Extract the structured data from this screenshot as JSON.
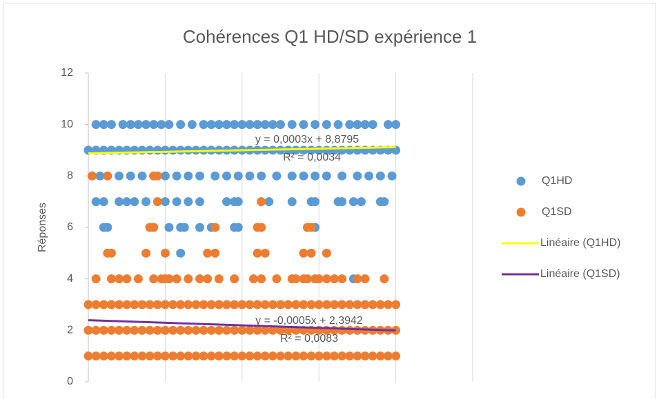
{
  "chart_data": {
    "type": "scatter",
    "title": "Cohérences Q1 HD/SD expérience 1",
    "y_label": "Réponses",
    "xlim": [
      0,
      1000
    ],
    "xticks": [
      0,
      200,
      400,
      600,
      800,
      1000
    ],
    "ylim": [
      0,
      12
    ],
    "yticks": [
      0,
      2,
      4,
      6,
      8,
      10,
      12
    ],
    "grid": "x",
    "annotations": [
      "y = 0,0003x + 8,8795",
      "R² = 0,0034",
      "y = -0,0005x + 2,3942",
      "R² = 0,0083"
    ],
    "series": [
      {
        "name": "Q1HD",
        "type": "scatter",
        "color": "#5b9bd5",
        "x": [
          20,
          40,
          60,
          90,
          110,
          130,
          150,
          170,
          190,
          210,
          240,
          270,
          300,
          320,
          340,
          360,
          380,
          400,
          420,
          440,
          460,
          480,
          500,
          530,
          560,
          590,
          620,
          650,
          680,
          700,
          720,
          740,
          780,
          800,
          0,
          20,
          40,
          60,
          80,
          100,
          120,
          140,
          160,
          180,
          200,
          220,
          240,
          260,
          280,
          300,
          320,
          340,
          360,
          380,
          400,
          420,
          440,
          460,
          480,
          500,
          520,
          540,
          560,
          580,
          600,
          620,
          640,
          660,
          680,
          700,
          720,
          740,
          760,
          780,
          800,
          10,
          30,
          50,
          80,
          110,
          140,
          170,
          200,
          230,
          260,
          290,
          330,
          360,
          390,
          420,
          450,
          490,
          530,
          560,
          590,
          620,
          660,
          700,
          730,
          760,
          790,
          20,
          40,
          80,
          100,
          120,
          150,
          200,
          230,
          260,
          290,
          360,
          380,
          390,
          470,
          530,
          580,
          590,
          650,
          660,
          690,
          710,
          760,
          770,
          40,
          50,
          160,
          170,
          210,
          240,
          250,
          290,
          320,
          380,
          390,
          570,
          590,
          240,
          690
        ],
        "values": [
          10,
          10,
          10,
          10,
          10,
          10,
          10,
          10,
          10,
          10,
          10,
          10,
          10,
          10,
          10,
          10,
          10,
          10,
          10,
          10,
          10,
          10,
          10,
          10,
          10,
          10,
          10,
          10,
          10,
          10,
          10,
          10,
          10,
          10,
          9,
          9,
          9,
          9,
          9,
          9,
          9,
          9,
          9,
          9,
          9,
          9,
          9,
          9,
          9,
          9,
          9,
          9,
          9,
          9,
          9,
          9,
          9,
          9,
          9,
          9,
          9,
          9,
          9,
          9,
          9,
          9,
          9,
          9,
          9,
          9,
          9,
          9,
          9,
          9,
          9,
          8,
          8,
          8,
          8,
          8,
          8,
          8,
          8,
          8,
          8,
          8,
          8,
          8,
          8,
          8,
          8,
          8,
          8,
          8,
          8,
          8,
          8,
          8,
          8,
          8,
          8,
          7,
          7,
          7,
          7,
          7,
          7,
          7,
          7,
          7,
          7,
          7,
          7,
          7,
          7,
          7,
          7,
          7,
          7,
          7,
          7,
          7,
          7,
          7,
          6,
          6,
          6,
          6,
          6,
          6,
          6,
          6,
          6,
          6,
          6,
          6,
          6,
          5,
          4
        ]
      },
      {
        "name": "Q1SD",
        "type": "scatter",
        "color": "#ed7d31",
        "x": [
          10,
          50,
          170,
          180,
          180,
          450,
          160,
          170,
          330,
          440,
          450,
          570,
          580,
          50,
          60,
          150,
          200,
          310,
          330,
          440,
          460,
          560,
          580,
          620,
          20,
          60,
          80,
          100,
          130,
          170,
          190,
          200,
          210,
          230,
          260,
          290,
          310,
          340,
          380,
          430,
          450,
          490,
          530,
          540,
          560,
          570,
          590,
          600,
          620,
          640,
          660,
          700,
          720,
          770,
          0,
          20,
          40,
          60,
          80,
          100,
          120,
          140,
          160,
          180,
          200,
          220,
          240,
          260,
          280,
          300,
          320,
          340,
          360,
          380,
          400,
          420,
          440,
          460,
          480,
          500,
          520,
          540,
          560,
          580,
          600,
          620,
          640,
          660,
          680,
          700,
          720,
          740,
          760,
          780,
          800,
          0,
          20,
          40,
          60,
          80,
          100,
          120,
          140,
          160,
          180,
          200,
          220,
          240,
          260,
          280,
          300,
          320,
          340,
          360,
          380,
          400,
          420,
          440,
          460,
          480,
          500,
          520,
          540,
          560,
          580,
          600,
          620,
          640,
          660,
          680,
          700,
          720,
          740,
          760,
          780,
          800,
          0,
          20,
          40,
          60,
          80,
          100,
          120,
          140,
          160,
          180,
          200,
          220,
          240,
          260,
          280,
          300,
          320,
          340,
          360,
          380,
          400,
          420,
          440,
          460,
          480,
          500,
          520,
          540,
          560,
          580,
          600,
          620,
          640,
          660,
          680,
          700,
          720,
          740,
          760,
          780,
          800
        ],
        "values": [
          8,
          8,
          8,
          8,
          7,
          7,
          6,
          6,
          6,
          6,
          6,
          6,
          6,
          5,
          5,
          5,
          5,
          5,
          5,
          5,
          5,
          5,
          5,
          5,
          4,
          4,
          4,
          4,
          4,
          4,
          4,
          4,
          4,
          4,
          4,
          4,
          4,
          4,
          4,
          4,
          4,
          4,
          4,
          4,
          4,
          4,
          4,
          4,
          4,
          4,
          4,
          4,
          4,
          4,
          3,
          3,
          3,
          3,
          3,
          3,
          3,
          3,
          3,
          3,
          3,
          3,
          3,
          3,
          3,
          3,
          3,
          3,
          3,
          3,
          3,
          3,
          3,
          3,
          3,
          3,
          3,
          3,
          3,
          3,
          3,
          3,
          3,
          3,
          3,
          3,
          3,
          3,
          3,
          3,
          3,
          2,
          2,
          2,
          2,
          2,
          2,
          2,
          2,
          2,
          2,
          2,
          2,
          2,
          2,
          2,
          2,
          2,
          2,
          2,
          2,
          2,
          2,
          2,
          2,
          2,
          2,
          2,
          2,
          2,
          2,
          2,
          2,
          2,
          2,
          2,
          2,
          2,
          2,
          2,
          2,
          2,
          1,
          1,
          1,
          1,
          1,
          1,
          1,
          1,
          1,
          1,
          1,
          1,
          1,
          1,
          1,
          1,
          1,
          1,
          1,
          1,
          1,
          1,
          1,
          1,
          1,
          1,
          1,
          1,
          1,
          1,
          1,
          1,
          1,
          1,
          1,
          1,
          1,
          1,
          1,
          1,
          1
        ]
      },
      {
        "name": "Linéaire (Q1HD)",
        "type": "line",
        "color": "#ffff00",
        "x": [
          0,
          800
        ],
        "values": [
          8.8795,
          9.1195
        ]
      },
      {
        "name": "Linéaire (Q1SD)",
        "type": "line",
        "color": "#7030a0",
        "x": [
          0,
          800
        ],
        "values": [
          2.3942,
          1.9942
        ]
      }
    ]
  }
}
